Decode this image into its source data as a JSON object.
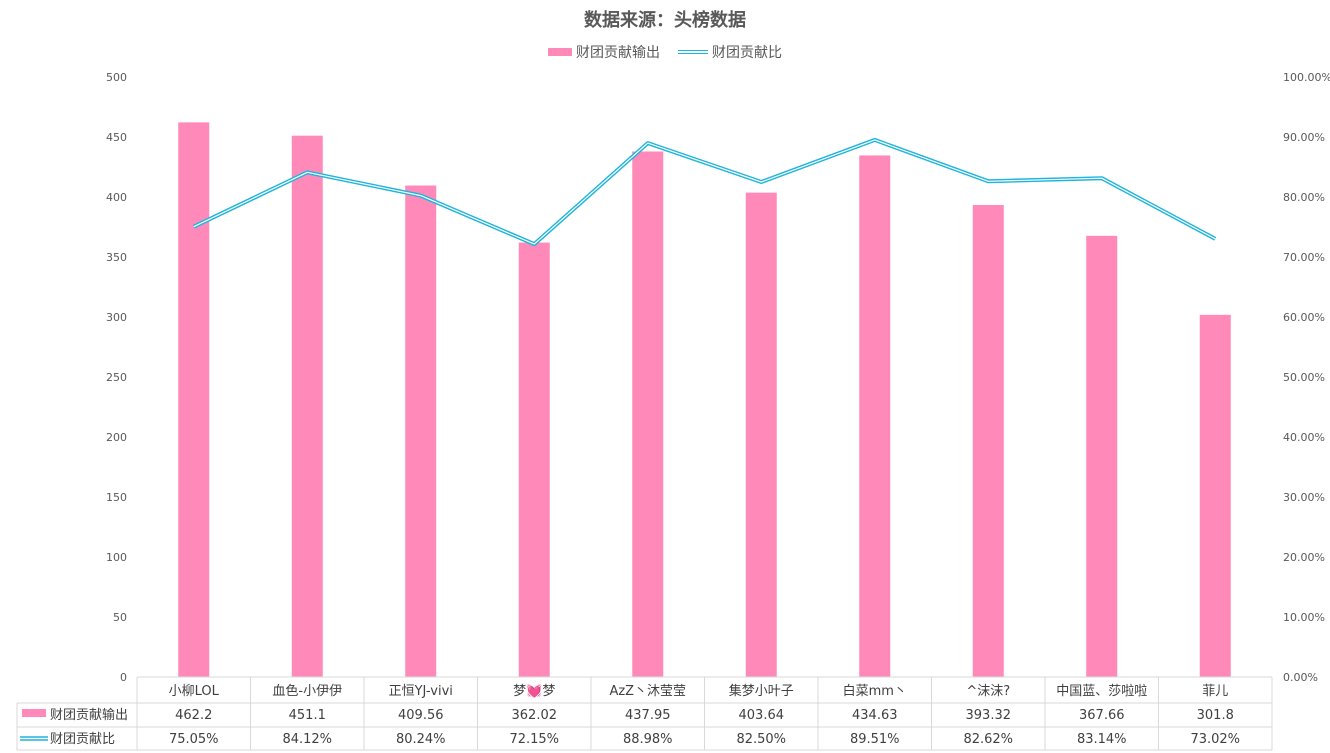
{
  "chart_data": {
    "type": "bar",
    "title": "数据来源：头榜数据",
    "categories": [
      "小柳LOL",
      "血色-小伊伊",
      "正恒YJ-vivi",
      "梦💓梦",
      "AzZ丶沐莹莹",
      "集梦小叶子",
      "白菜mm丶",
      "^沫沫?",
      "中国蓝、莎啦啦",
      "菲儿"
    ],
    "series": [
      {
        "name": "财团贡献输出",
        "type": "bar",
        "axis": "left",
        "color": "#ff8ab9",
        "values": [
          462.2,
          451.1,
          409.56,
          362.02,
          437.95,
          403.64,
          434.63,
          393.32,
          367.66,
          301.8
        ],
        "labels": [
          "462.2",
          "451.1",
          "409.56",
          "362.02",
          "437.95",
          "403.64",
          "434.63",
          "393.32",
          "367.66",
          "301.8"
        ]
      },
      {
        "name": "财团贡献比",
        "type": "line",
        "axis": "right",
        "color": "#1fb4dc",
        "values": [
          75.05,
          84.12,
          80.24,
          72.15,
          88.98,
          82.5,
          89.51,
          82.62,
          83.14,
          73.02
        ],
        "labels": [
          "75.05%",
          "84.12%",
          "80.24%",
          "72.15%",
          "88.98%",
          "82.50%",
          "89.51%",
          "82.62%",
          "83.14%",
          "73.02%"
        ]
      }
    ],
    "ylim_left": [
      0,
      500
    ],
    "yticks_left": [
      "0",
      "50",
      "100",
      "150",
      "200",
      "250",
      "300",
      "350",
      "400",
      "450",
      "500"
    ],
    "ylim_right": [
      0,
      100
    ],
    "yticks_right": [
      "0.00%",
      "10.00%",
      "20.00%",
      "30.00%",
      "40.00%",
      "50.00%",
      "60.00%",
      "70.00%",
      "80.00%",
      "90.00%",
      "100.00%"
    ],
    "legend_position": "top",
    "grid": false,
    "data_table": true
  }
}
